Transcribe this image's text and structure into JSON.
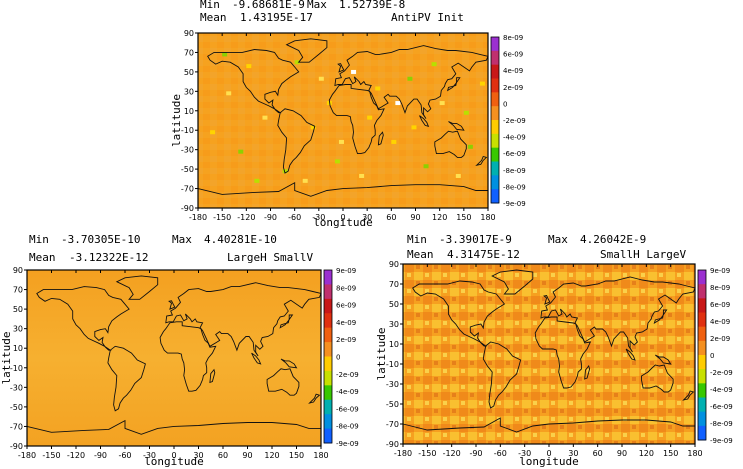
{
  "chart_data": [
    {
      "type": "heatmap",
      "min_label": "Min",
      "min_value": "-9.68681E-9",
      "max_label": "Max",
      "max_value": "1.52739E-8",
      "mean_label": "Mean",
      "mean_value": "1.43195E-17",
      "title": "AntiPV Init",
      "xlabel": "longitude",
      "ylabel": "latitude",
      "xlim": [
        -180,
        180
      ],
      "ylim": [
        -90,
        90
      ],
      "xticks": [
        "-180",
        "-150",
        "-120",
        "-90",
        "-60",
        "-30",
        "0",
        "30",
        "60",
        "90",
        "120",
        "150",
        "180"
      ],
      "yticks": [
        "90",
        "70",
        "50",
        "30",
        "10",
        "-10",
        "-30",
        "-50",
        "-70",
        "-90"
      ],
      "colorbar": [
        "8e-09",
        "6e-09",
        "4e-09",
        "2e-09",
        "0",
        "-2e-09",
        "-4e-09",
        "-6e-09",
        "-8e-09"
      ],
      "colorbar_extra": [
        "-8e-09",
        "-9e-09"
      ],
      "field": "orange background with scattered green/yellow/white speckles"
    },
    {
      "type": "heatmap",
      "min_label": "Min",
      "min_value": "-3.70305E-10",
      "max_label": "Max",
      "max_value": "4.40281E-10",
      "mean_label": "Mean",
      "mean_value": "-3.12322E-12",
      "title": "LargeH SmallV",
      "xlabel": "longitude",
      "ylabel": "latitude",
      "xlim": [
        -180,
        180
      ],
      "ylim": [
        -90,
        90
      ],
      "xticks": [
        "-180",
        "-150",
        "-120",
        "-90",
        "-60",
        "-30",
        "0",
        "30",
        "60",
        "90",
        "120",
        "150",
        "180"
      ],
      "yticks": [
        "90",
        "70",
        "50",
        "30",
        "10",
        "-10",
        "-30",
        "-50",
        "-70",
        "-90"
      ],
      "colorbar": [
        "9e-09",
        "8e-09",
        "6e-09",
        "4e-09",
        "2e-09",
        "0",
        "-2e-09",
        "-4e-09",
        "-6e-09",
        "-8e-09"
      ],
      "colorbar_extra": [
        "-9e-09"
      ],
      "field": "smooth orange field"
    },
    {
      "type": "heatmap",
      "min_label": "Min",
      "min_value": "-3.39017E-9",
      "max_label": "Max",
      "max_value": "4.26042E-9",
      "mean_label": "Mean",
      "mean_value": "4.31475E-12",
      "title": "SmallH LargeV",
      "xlabel": "longitude",
      "ylabel": "latitude",
      "xlim": [
        -180,
        180
      ],
      "ylim": [
        -90,
        90
      ],
      "xticks": [
        "-180",
        "-150",
        "-120",
        "-90",
        "-60",
        "-30",
        "0",
        "30",
        "60",
        "90",
        "120",
        "150",
        "180"
      ],
      "yticks": [
        "90",
        "70",
        "50",
        "30",
        "10",
        "-10",
        "-30",
        "-50",
        "-70",
        "-90"
      ],
      "colorbar": [
        "9e-09",
        "8e-09",
        "6e-09",
        "4e-09",
        "2e-09",
        "0",
        "-2e-09",
        "-4e-09",
        "-6e-09",
        "-8e-09"
      ],
      "colorbar_extra": [
        "-9e-09"
      ],
      "field": "orange field with checkered yellow/red pattern"
    }
  ],
  "colors": {
    "field": "#f5a623",
    "colorbar": [
      "#9b30d0",
      "#c0306e",
      "#c81818",
      "#e03010",
      "#f06010",
      "#f59020",
      "#ffcc00",
      "#c8e000",
      "#38c800",
      "#00b0b0",
      "#0090e0",
      "#1060ff"
    ]
  }
}
